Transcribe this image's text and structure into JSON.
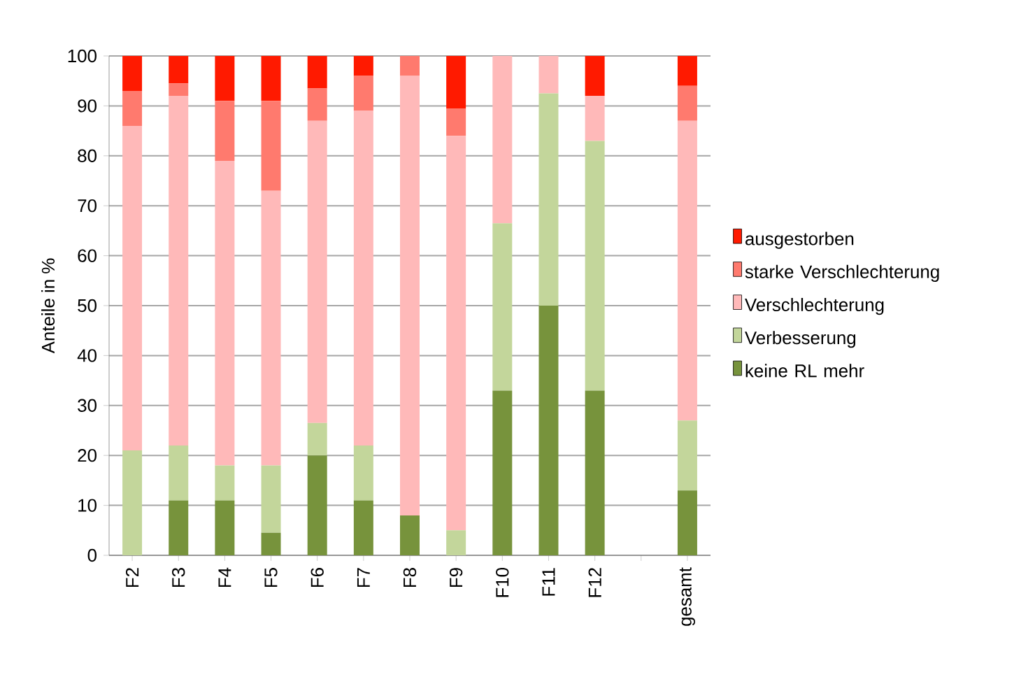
{
  "chart_data": {
    "type": "bar",
    "stacked": true,
    "ylabel": "Anteile in %",
    "categories": [
      "F2",
      "F3",
      "F4",
      "F5",
      "F6",
      "F7",
      "F8",
      "F9",
      "F10",
      "F11",
      "F12",
      null,
      "gesamt"
    ],
    "series": [
      {
        "name": "keine RL mehr",
        "color": "#77933c",
        "values": [
          0,
          11,
          11,
          4.5,
          20,
          11,
          8,
          0,
          33,
          50,
          33,
          null,
          13
        ]
      },
      {
        "name": "Verbesserung",
        "color": "#c3d69b",
        "values": [
          21,
          11,
          7,
          13.5,
          6.5,
          11,
          0,
          5,
          33.5,
          42.5,
          50,
          null,
          14
        ]
      },
      {
        "name": "Verschlechterung",
        "color": "#ffb9b9",
        "values": [
          65,
          70,
          61,
          55,
          60.5,
          67,
          88,
          79,
          33.5,
          7.5,
          9,
          null,
          60
        ]
      },
      {
        "name": "starke Verschlechterung",
        "color": "#ff7a6e",
        "values": [
          7,
          2.5,
          12,
          18,
          6.5,
          7,
          4,
          5.5,
          0,
          0,
          0,
          null,
          7
        ]
      },
      {
        "name": "ausgestorben",
        "color": "#ff1a00",
        "values": [
          7,
          5.5,
          9,
          9,
          6.5,
          4,
          0,
          10.5,
          0,
          0,
          8,
          null,
          6
        ]
      }
    ],
    "ylim": [
      0,
      100
    ],
    "yticks": [
      0,
      10,
      20,
      30,
      40,
      50,
      60,
      70,
      80,
      90,
      100
    ],
    "grid": "y",
    "legend": "right"
  }
}
